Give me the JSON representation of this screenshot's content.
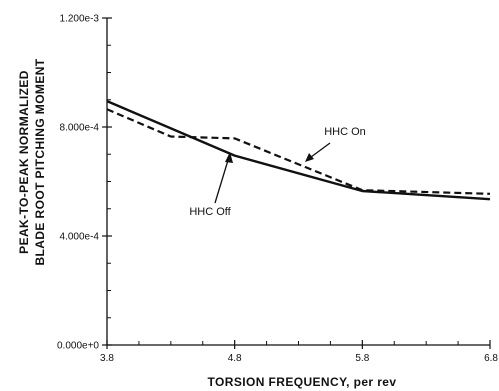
{
  "chart_data": {
    "type": "line",
    "title": "",
    "xlabel": "TORSION FREQUENCY, per rev",
    "ylabel_lines": [
      "PEAK-TO-PEAK NORMALIZED",
      "BLADE ROOT PITCHING MOMENT"
    ],
    "xlim": [
      3.8,
      6.8
    ],
    "ylim": [
      0.0,
      0.0012
    ],
    "x_ticks": [
      3.8,
      4.8,
      5.8,
      6.8
    ],
    "x_tick_labels": [
      "3.8",
      "4.8",
      "5.8",
      "6.8"
    ],
    "y_ticks": [
      0.0,
      0.0004,
      0.0008,
      0.0012
    ],
    "y_tick_labels": [
      "0.000e+0",
      "4.000e-4",
      "8.000e-4",
      "1.200e-3"
    ],
    "grid": false,
    "series": [
      {
        "name": "HHC Off",
        "style": "solid",
        "color": "#111111",
        "x": [
          3.8,
          4.8,
          5.8,
          6.8
        ],
        "y": [
          0.000895,
          0.000695,
          0.000565,
          0.000535
        ]
      },
      {
        "name": "HHC On",
        "style": "dashed",
        "color": "#111111",
        "x": [
          3.8,
          4.3,
          4.8,
          5.8,
          6.8
        ],
        "y": [
          0.000865,
          0.000765,
          0.000758,
          0.000568,
          0.000555
        ]
      }
    ],
    "annotations": [
      {
        "text": "HHC On",
        "series": "HHC On"
      },
      {
        "text": "HHC Off",
        "series": "HHC Off"
      }
    ]
  }
}
